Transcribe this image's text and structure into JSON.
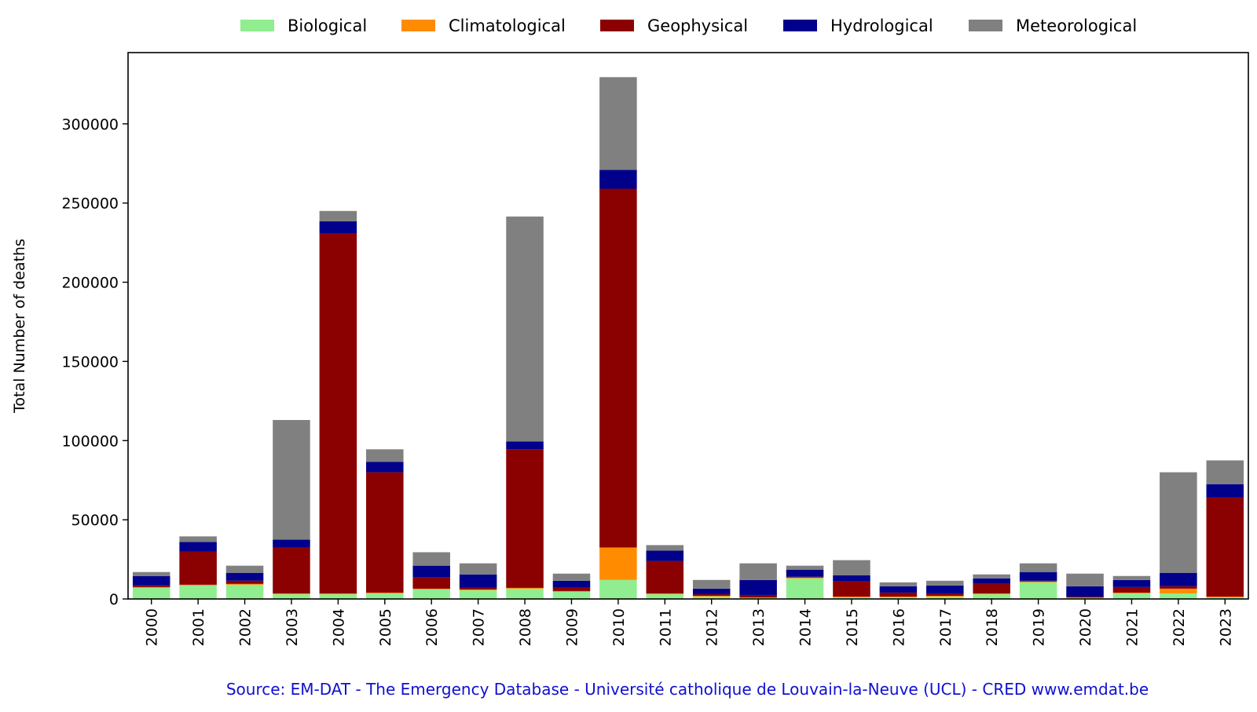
{
  "chart_data": {
    "type": "bar",
    "stacked": true,
    "title": "",
    "xlabel": "",
    "ylabel": "Total Number of deaths",
    "ylim": [
      0,
      345000
    ],
    "yticks": [
      0,
      50000,
      100000,
      150000,
      200000,
      250000,
      300000
    ],
    "tick_labels_x_rotation": 90,
    "legend_position": "top-center",
    "grid": false,
    "source": "Source: EM-DAT - The Emergency Database - Université catholique de Louvain-la-Neuve (UCL) - CRED www.emdat.be",
    "categories": [
      "2000",
      "2001",
      "2002",
      "2003",
      "2004",
      "2005",
      "2006",
      "2007",
      "2008",
      "2009",
      "2010",
      "2011",
      "2012",
      "2013",
      "2014",
      "2015",
      "2016",
      "2017",
      "2018",
      "2019",
      "2020",
      "2021",
      "2022",
      "2023"
    ],
    "series": [
      {
        "name": "Biological",
        "color": "#90ee90",
        "values": [
          7000,
          8500,
          9000,
          3000,
          3000,
          3500,
          6000,
          5500,
          6500,
          4500,
          12000,
          3000,
          1500,
          500,
          13000,
          1000,
          1000,
          1500,
          3000,
          10500,
          500,
          3500,
          3500,
          1000
        ]
      },
      {
        "name": "Climatological",
        "color": "#ff8c00",
        "values": [
          500,
          500,
          500,
          500,
          500,
          500,
          500,
          500,
          500,
          500,
          20500,
          500,
          500,
          500,
          500,
          500,
          500,
          500,
          500,
          500,
          500,
          500,
          3000,
          500
        ]
      },
      {
        "name": "Geophysical",
        "color": "#8b0000",
        "values": [
          1000,
          21000,
          2000,
          29000,
          227500,
          76000,
          7000,
          1000,
          87500,
          2000,
          226500,
          20500,
          1000,
          1500,
          500,
          9500,
          2500,
          1500,
          6000,
          500,
          500,
          3500,
          1500,
          62500
        ]
      },
      {
        "name": "Hydrological",
        "color": "#00008b",
        "values": [
          6000,
          6000,
          5000,
          5000,
          7500,
          6500,
          7500,
          8500,
          5000,
          4500,
          12000,
          6500,
          3500,
          9500,
          4500,
          4000,
          4000,
          5000,
          3500,
          5500,
          6500,
          4500,
          8500,
          8500
        ]
      },
      {
        "name": "Meteorological",
        "color": "#808080",
        "values": [
          2500,
          3500,
          4500,
          75500,
          6500,
          8000,
          8500,
          7000,
          142000,
          4500,
          58500,
          3500,
          5500,
          10500,
          2500,
          9500,
          2500,
          3000,
          2500,
          5500,
          8000,
          2500,
          63500,
          15000
        ]
      }
    ]
  }
}
